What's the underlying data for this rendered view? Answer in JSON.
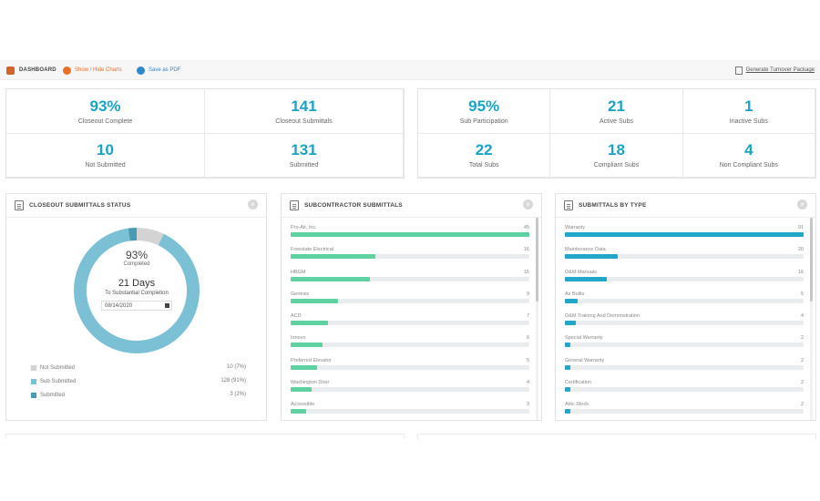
{
  "toolbar": {
    "dashboard_label": "DASHBOARD",
    "charts_label": "Show / Hide Charts",
    "pdf_label": "Save as PDF",
    "turnover_label": "Generate Turnover Package"
  },
  "stats_left": [
    {
      "value": "93%",
      "label": "Closeout Complete"
    },
    {
      "value": "141",
      "label": "Closeout Submittals"
    },
    {
      "value": "10",
      "label": "Not Submitted"
    },
    {
      "value": "131",
      "label": "Submitted"
    }
  ],
  "stats_right": [
    {
      "value": "95%",
      "label": "Sub Participation"
    },
    {
      "value": "21",
      "label": "Active Subs"
    },
    {
      "value": "1",
      "label": "Inactive Subs"
    },
    {
      "value": "22",
      "label": "Total Subs"
    },
    {
      "value": "18",
      "label": "Compliant Subs"
    },
    {
      "value": "4",
      "label": "Non Compliant Subs"
    }
  ],
  "status_card": {
    "title": "CLOSEOUT SUBMITTALS STATUS",
    "close_glyph": "×",
    "percent": "93%",
    "completed_label": "Completed",
    "days": "21 Days",
    "days_sub": "To Substantial Completion",
    "date": "08/14/2020",
    "donut": [
      {
        "name": "Not Submitted",
        "value": 10,
        "color": "#d3d3d3"
      },
      {
        "name": "Sub Submitted",
        "value": 128,
        "color": "#7cc0d6"
      },
      {
        "name": "Submitted",
        "value": 3,
        "color": "#4a9ab3"
      }
    ],
    "legend": [
      {
        "label": "Not Submitted",
        "value": "10 (7%)",
        "color": "#d3d3d3"
      },
      {
        "label": "Sub Submitted",
        "value": "128 (91%)",
        "color": "#7cc0d6"
      },
      {
        "label": "Submitted",
        "value": "3 (2%)",
        "color": "#4a9ab3"
      }
    ]
  },
  "subs_card": {
    "title": "SUBCONTRACTOR SUBMITTALS",
    "close_glyph": "×",
    "bar_color": "#5fd0a0",
    "max": 45,
    "items": [
      {
        "label": "Pro-Air, Inc.",
        "count": "45",
        "value": 45
      },
      {
        "label": "Freestate Electrical",
        "count": "16",
        "value": 16
      },
      {
        "label": "HBGM",
        "count": "15",
        "value": 15
      },
      {
        "label": "Genesis",
        "count": "9",
        "value": 9
      },
      {
        "label": "ACD",
        "count": "7",
        "value": 7
      },
      {
        "label": "Ionovo",
        "count": "6",
        "value": 6
      },
      {
        "label": "Preferred Elevator",
        "count": "5",
        "value": 5
      },
      {
        "label": "Washington Door",
        "count": "4",
        "value": 4
      },
      {
        "label": "Accessible",
        "count": "3",
        "value": 3
      }
    ]
  },
  "type_card": {
    "title": "SUBMITTALS BY TYPE",
    "close_glyph": "×",
    "bar_color": "#22a7c9",
    "max": 91,
    "items": [
      {
        "label": "Warranty",
        "count": "91",
        "value": 91
      },
      {
        "label": "Maintenance Data",
        "count": "20",
        "value": 20
      },
      {
        "label": "O&M Manuals",
        "count": "16",
        "value": 16
      },
      {
        "label": "As Builts",
        "count": "5",
        "value": 5
      },
      {
        "label": "O&M Training And Demonstration",
        "count": "4",
        "value": 4
      },
      {
        "label": "Special Warranty",
        "count": "2",
        "value": 2
      },
      {
        "label": "General Warranty",
        "count": "2",
        "value": 2
      },
      {
        "label": "Certification",
        "count": "2",
        "value": 2
      },
      {
        "label": "Attic Stock",
        "count": "2",
        "value": 2
      }
    ]
  }
}
